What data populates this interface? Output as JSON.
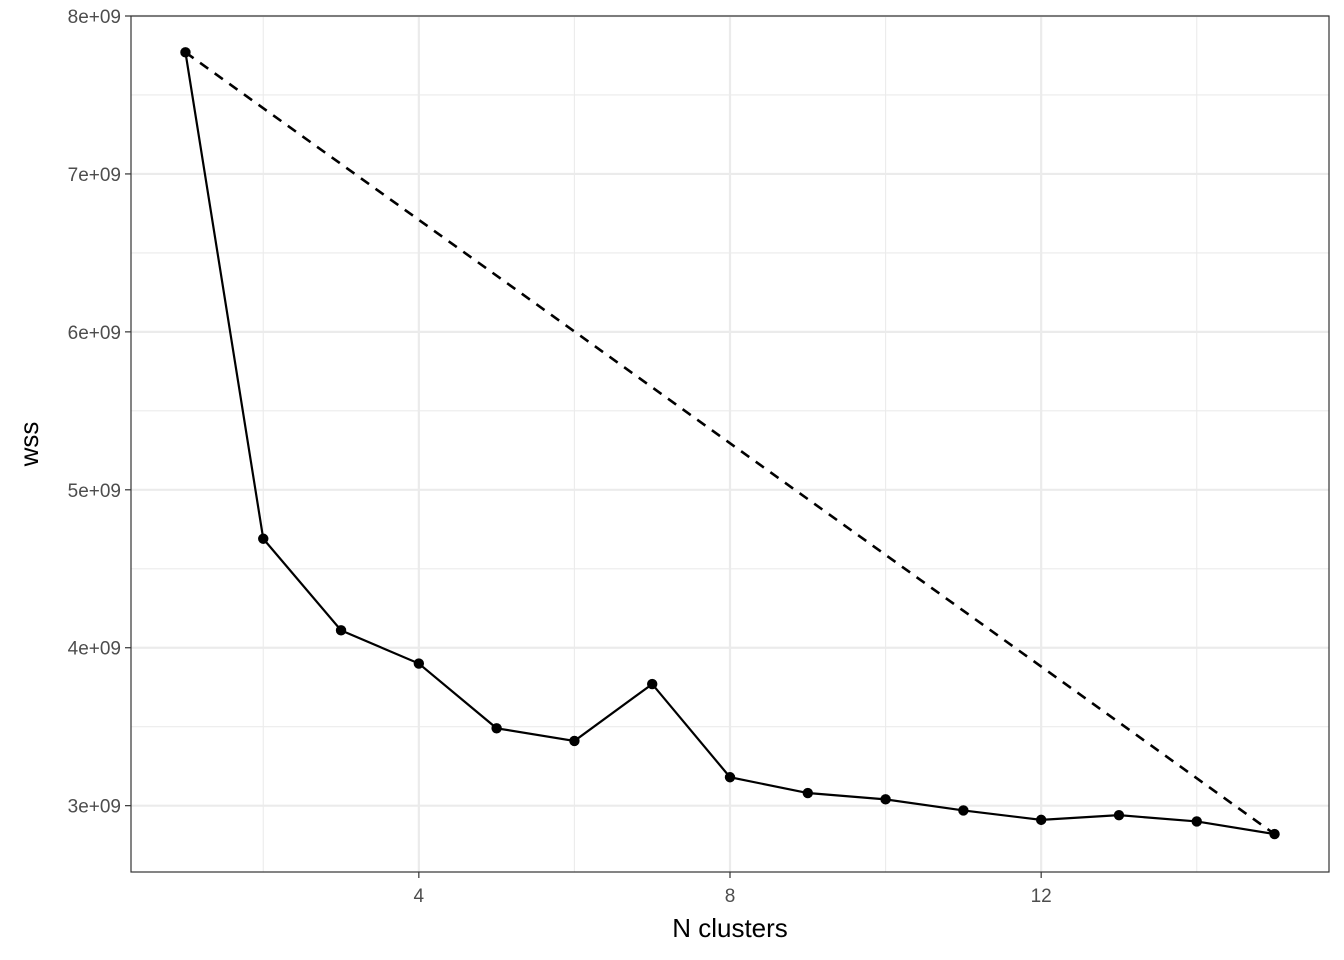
{
  "chart_data": {
    "type": "line",
    "title": "",
    "xlabel": "N clusters",
    "ylabel": "wss",
    "xlim": [
      0.3,
      15.7
    ],
    "ylim": [
      2580000000.0,
      8000000000.0
    ],
    "x_ticks": [
      4,
      8,
      12
    ],
    "y_ticks": [
      3000000000.0,
      4000000000.0,
      5000000000.0,
      6000000000.0,
      7000000000.0,
      8000000000.0
    ],
    "x_tick_labels": [
      "4",
      "8",
      "12"
    ],
    "y_tick_labels": [
      "3e+09",
      "4e+09",
      "5e+09",
      "6e+09",
      "7e+09",
      "8e+09"
    ],
    "grid": true,
    "series": [
      {
        "style": "solid-with-points",
        "color": "#000000",
        "x": [
          1,
          2,
          3,
          4,
          5,
          6,
          7,
          8,
          9,
          10,
          11,
          12,
          13,
          14,
          15
        ],
        "y": [
          7770000000.0,
          4690000000.0,
          4110000000.0,
          3900000000.0,
          3490000000.0,
          3410000000.0,
          3770000000.0,
          3180000000.0,
          3080000000.0,
          3040000000.0,
          2970000000.0,
          2910000000.0,
          2940000000.0,
          2900000000.0,
          2820000000.0
        ]
      },
      {
        "style": "dashed",
        "color": "#000000",
        "x": [
          1,
          15
        ],
        "y": [
          7770000000.0,
          2820000000.0
        ]
      }
    ]
  }
}
